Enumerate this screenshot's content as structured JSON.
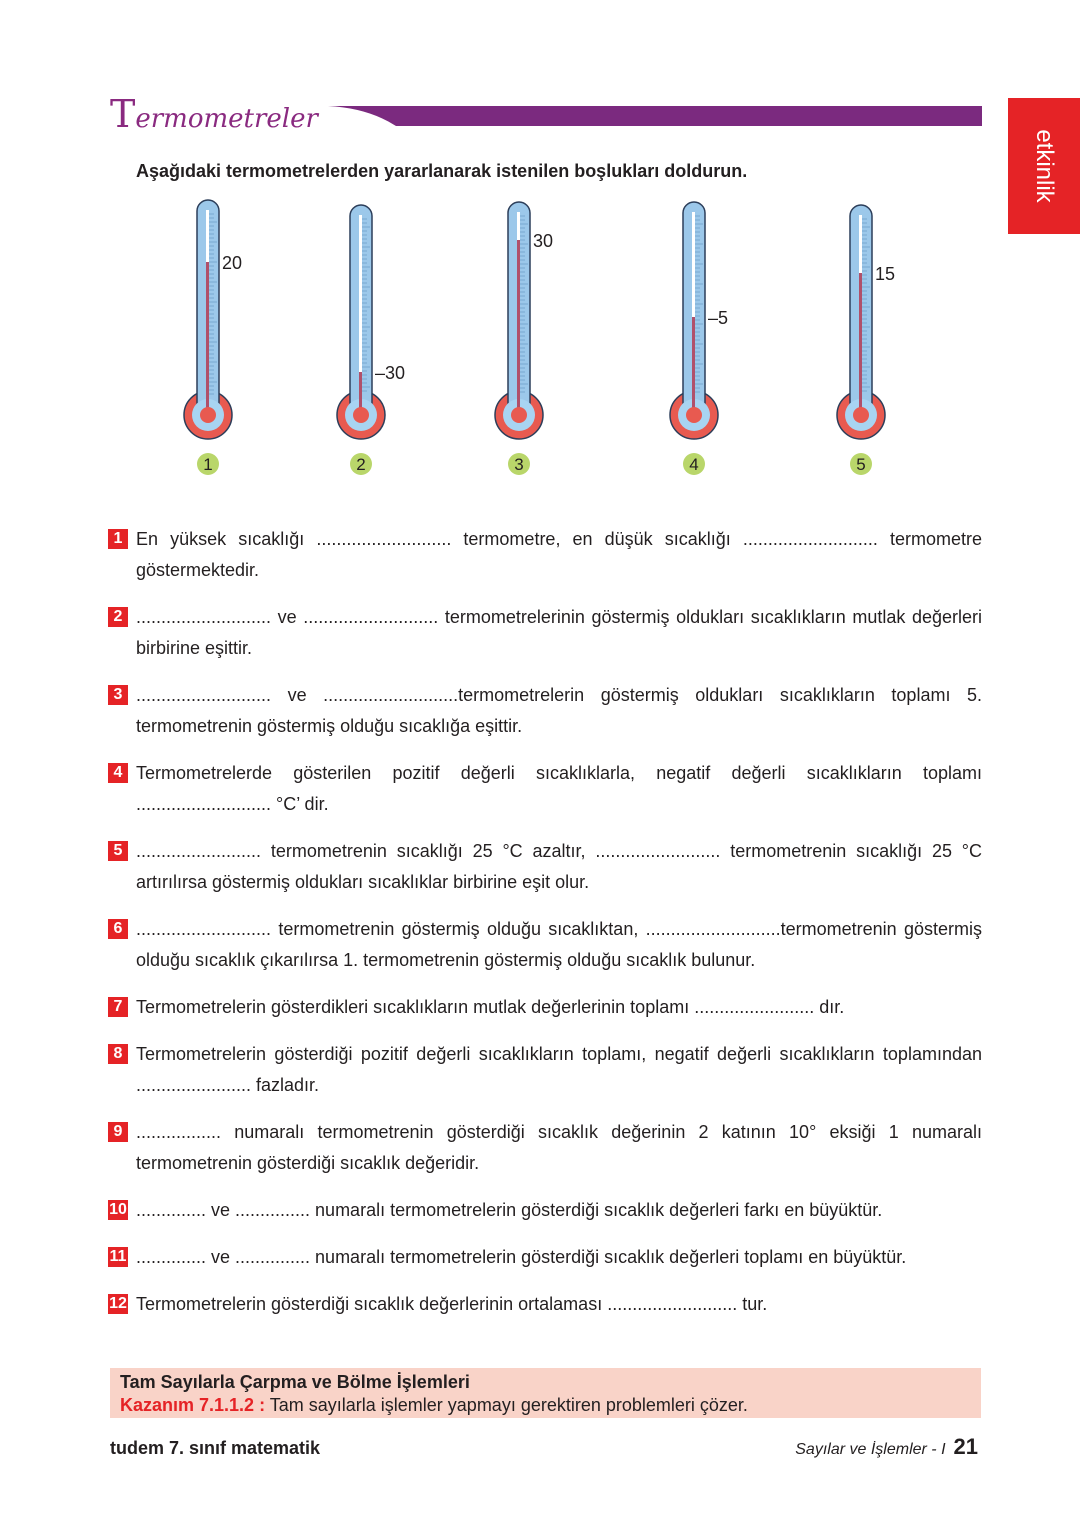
{
  "header": {
    "title_first": "T",
    "title_rest": "ermometreler",
    "side_tab": "etkinlik",
    "accent": "#7b2a7f",
    "tab_color": "#e52326"
  },
  "instruction": "Aşağıdaki termometrelerden yararlanarak istenilen boşlukları doldurun.",
  "thermometers": [
    {
      "number": "1",
      "value": 20,
      "label": "20"
    },
    {
      "number": "2",
      "value": -30,
      "label": "–30"
    },
    {
      "number": "3",
      "value": 30,
      "label": "30"
    },
    {
      "number": "4",
      "value": -5,
      "label": "–5"
    },
    {
      "number": "5",
      "value": 15,
      "label": "15"
    }
  ],
  "items": [
    {
      "n": "1",
      "text": "En yüksek sıcaklığı ........................... termometre, en düşük sıcaklığı ........................... termometre göstermektedir."
    },
    {
      "n": "2",
      "text": "........................... ve ........................... termometrelerinin göstermiş oldukları sıcaklıkların mutlak değerleri birbirine eşittir."
    },
    {
      "n": "3",
      "text": "........................... ve ...........................termometrelerin göstermiş oldukları sıcaklıkların toplamı 5. termometrenin göstermiş olduğu sıcaklığa eşittir."
    },
    {
      "n": "4",
      "text": "Termometrelerde gösterilen pozitif değerli sıcaklıklarla, negatif değerli sıcaklıkların toplamı ........................... °C’ dir."
    },
    {
      "n": "5",
      "text": "......................... termometrenin sıcaklığı 25 °C azaltır, ......................... termometrenin sıcaklığı 25 °C artırılırsa göstermiş oldukları sıcaklıklar birbirine eşit olur."
    },
    {
      "n": "6",
      "text": "........................... termometrenin göstermiş olduğu sıcaklıktan, ...........................termometrenin göstermiş olduğu sıcaklık çıkarılırsa 1. termometrenin göstermiş olduğu sıcaklık bulunur."
    },
    {
      "n": "7",
      "text": "Termometrelerin gösterdikleri sıcaklıkların mutlak değerlerinin toplamı ........................ dır."
    },
    {
      "n": "8",
      "text": "Termometrelerin gösterdiği pozitif değerli sıcaklıkların toplamı, negatif değerli sıcaklıkların toplamından ....................... fazladır."
    },
    {
      "n": "9",
      "text": "................. numaralı termometrenin gösterdiği sıcaklık değerinin 2 katının 10° eksiği 1 numaralı termometrenin gösterdiği sıcaklık değeridir."
    },
    {
      "n": "10",
      "text": ".............. ve ............... numaralı termometrelerin gösterdiği sıcaklık değerleri farkı en büyüktür."
    },
    {
      "n": "11",
      "text": ".............. ve ............... numaralı termometrelerin gösterdiği sıcaklık değerleri toplamı en büyüktür."
    },
    {
      "n": "12",
      "text": "Termometrelerin gösterdiği sıcaklık değerlerinin ortalaması .......................... tur."
    }
  ],
  "objective": {
    "topic": "Tam Sayılarla Çarpma ve Bölme İşlemleri",
    "code": "Kazanım 7.1.1.2 :",
    "text": " Tam sayılarla işlemler yapmayı gerektiren problemleri çözer."
  },
  "footer": {
    "brand": "tudem 7. sınıf matematik",
    "section": "Sayılar ve İşlemler - I",
    "page": "21"
  }
}
